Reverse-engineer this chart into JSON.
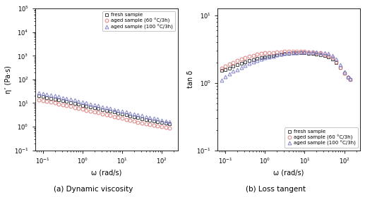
{
  "panel_a": {
    "title": "(a) Dynamic viscosity",
    "xlabel": "ω (rad/s)",
    "ylabel": "η’ (Pa·s)",
    "xlim_log": [
      -1.2,
      2.4
    ],
    "ylim_log": [
      -1,
      5
    ],
    "series": {
      "fresh": {
        "color": "#444444",
        "marker": "s",
        "label": "fresh sample",
        "x_log": [
          -1.1,
          -1.0,
          -0.9,
          -0.8,
          -0.7,
          -0.6,
          -0.5,
          -0.4,
          -0.3,
          -0.2,
          -0.1,
          0.0,
          0.1,
          0.2,
          0.3,
          0.4,
          0.5,
          0.6,
          0.7,
          0.8,
          0.9,
          1.0,
          1.1,
          1.2,
          1.3,
          1.4,
          1.5,
          1.6,
          1.7,
          1.8,
          1.9,
          2.0,
          2.1,
          2.2
        ],
        "y_log": [
          1.3,
          1.27,
          1.23,
          1.2,
          1.17,
          1.13,
          1.1,
          1.06,
          1.02,
          0.99,
          0.95,
          0.91,
          0.87,
          0.84,
          0.8,
          0.77,
          0.73,
          0.69,
          0.65,
          0.62,
          0.58,
          0.54,
          0.5,
          0.46,
          0.42,
          0.38,
          0.34,
          0.31,
          0.27,
          0.24,
          0.2,
          0.17,
          0.14,
          0.12
        ]
      },
      "aged60": {
        "color": "#e08080",
        "marker": "o",
        "label": "aged sample (60 °C/3h)",
        "x_log": [
          -1.1,
          -1.0,
          -0.9,
          -0.8,
          -0.7,
          -0.6,
          -0.5,
          -0.4,
          -0.3,
          -0.2,
          -0.1,
          0.0,
          0.1,
          0.2,
          0.3,
          0.4,
          0.5,
          0.6,
          0.7,
          0.8,
          0.9,
          1.0,
          1.1,
          1.2,
          1.3,
          1.4,
          1.5,
          1.6,
          1.7,
          1.8,
          1.9,
          2.0,
          2.1,
          2.2
        ],
        "y_log": [
          1.13,
          1.1,
          1.07,
          1.04,
          1.01,
          0.97,
          0.93,
          0.9,
          0.86,
          0.82,
          0.78,
          0.74,
          0.7,
          0.67,
          0.63,
          0.59,
          0.55,
          0.51,
          0.47,
          0.43,
          0.39,
          0.35,
          0.31,
          0.27,
          0.23,
          0.19,
          0.15,
          0.12,
          0.09,
          0.06,
          0.03,
          0.0,
          -0.03,
          -0.05
        ]
      },
      "aged100": {
        "color": "#8080cc",
        "marker": "^",
        "label": "aged sample (100 °C/3h)",
        "x_log": [
          -1.1,
          -1.0,
          -0.9,
          -0.8,
          -0.7,
          -0.6,
          -0.5,
          -0.4,
          -0.3,
          -0.2,
          -0.1,
          0.0,
          0.1,
          0.2,
          0.3,
          0.4,
          0.5,
          0.6,
          0.7,
          0.8,
          0.9,
          1.0,
          1.1,
          1.2,
          1.3,
          1.4,
          1.5,
          1.6,
          1.7,
          1.8,
          1.9,
          2.0,
          2.1,
          2.2
        ],
        "y_log": [
          1.44,
          1.41,
          1.37,
          1.34,
          1.3,
          1.27,
          1.23,
          1.19,
          1.15,
          1.12,
          1.08,
          1.04,
          1.0,
          0.96,
          0.93,
          0.89,
          0.85,
          0.81,
          0.77,
          0.73,
          0.7,
          0.66,
          0.62,
          0.58,
          0.54,
          0.5,
          0.47,
          0.43,
          0.39,
          0.36,
          0.32,
          0.28,
          0.24,
          0.21
        ]
      }
    }
  },
  "panel_b": {
    "title": "(b) Loss tangent",
    "xlabel": "ω (rad/s)",
    "ylabel": "tan δ",
    "xlim_log": [
      -1.2,
      2.4
    ],
    "ylim_log": [
      -1,
      1.1
    ],
    "series": {
      "fresh": {
        "color": "#444444",
        "marker": "s",
        "label": "fresh sample",
        "x_log": [
          -1.1,
          -1.0,
          -0.9,
          -0.8,
          -0.7,
          -0.6,
          -0.5,
          -0.4,
          -0.3,
          -0.2,
          -0.1,
          0.0,
          0.1,
          0.2,
          0.3,
          0.4,
          0.5,
          0.6,
          0.7,
          0.8,
          0.9,
          1.0,
          1.1,
          1.2,
          1.3,
          1.4,
          1.5,
          1.6,
          1.7,
          1.8,
          1.9,
          2.0,
          2.1,
          2.15
        ],
        "y_log": [
          0.18,
          0.2,
          0.22,
          0.25,
          0.27,
          0.29,
          0.31,
          0.33,
          0.34,
          0.36,
          0.37,
          0.38,
          0.39,
          0.4,
          0.41,
          0.42,
          0.43,
          0.43,
          0.44,
          0.44,
          0.44,
          0.44,
          0.43,
          0.43,
          0.42,
          0.41,
          0.4,
          0.38,
          0.35,
          0.3,
          0.23,
          0.14,
          0.08,
          0.05
        ]
      },
      "aged60": {
        "color": "#e08080",
        "marker": "o",
        "label": "aged sample (60 °C/3h)",
        "x_log": [
          -1.1,
          -1.0,
          -0.9,
          -0.8,
          -0.7,
          -0.6,
          -0.5,
          -0.4,
          -0.3,
          -0.2,
          -0.1,
          0.0,
          0.1,
          0.2,
          0.3,
          0.4,
          0.5,
          0.6,
          0.7,
          0.8,
          0.9,
          1.0,
          1.1,
          1.2,
          1.3,
          1.4,
          1.5,
          1.6,
          1.7,
          1.8,
          1.9,
          2.0,
          2.1,
          2.15
        ],
        "y_log": [
          0.22,
          0.25,
          0.28,
          0.3,
          0.33,
          0.35,
          0.37,
          0.39,
          0.4,
          0.42,
          0.43,
          0.44,
          0.44,
          0.45,
          0.46,
          0.46,
          0.47,
          0.47,
          0.47,
          0.47,
          0.47,
          0.47,
          0.46,
          0.46,
          0.45,
          0.44,
          0.42,
          0.4,
          0.37,
          0.31,
          0.23,
          0.14,
          0.08,
          0.05
        ]
      },
      "aged100": {
        "color": "#8080cc",
        "marker": "^",
        "label": "aged sample (100 °C/3h)",
        "x_log": [
          -1.1,
          -1.0,
          -0.9,
          -0.8,
          -0.7,
          -0.6,
          -0.5,
          -0.4,
          -0.3,
          -0.2,
          -0.1,
          0.0,
          0.1,
          0.2,
          0.3,
          0.4,
          0.5,
          0.6,
          0.7,
          0.8,
          0.9,
          1.0,
          1.1,
          1.2,
          1.3,
          1.4,
          1.5,
          1.6,
          1.7,
          1.8,
          1.9,
          2.0,
          2.1,
          2.15
        ],
        "y_log": [
          0.04,
          0.09,
          0.13,
          0.17,
          0.2,
          0.23,
          0.26,
          0.29,
          0.31,
          0.33,
          0.35,
          0.37,
          0.38,
          0.39,
          0.41,
          0.42,
          0.43,
          0.44,
          0.44,
          0.45,
          0.46,
          0.46,
          0.46,
          0.46,
          0.46,
          0.45,
          0.44,
          0.43,
          0.4,
          0.35,
          0.27,
          0.16,
          0.09,
          0.06
        ]
      }
    }
  },
  "bg_color": "#ffffff",
  "marker_size": 3.5,
  "marker_linewidth": 0.7
}
